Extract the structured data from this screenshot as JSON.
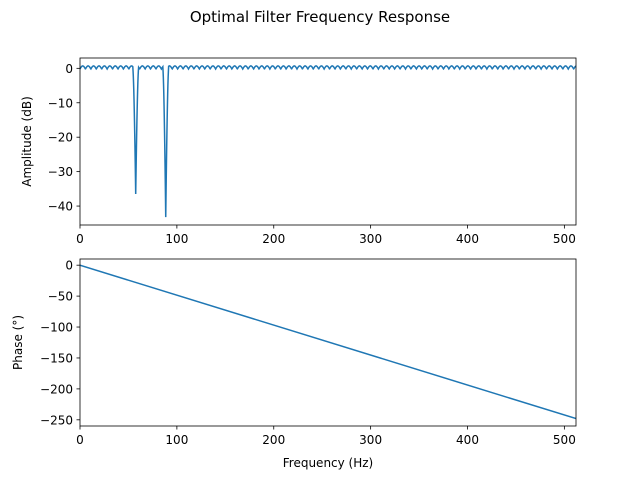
{
  "figure": {
    "title": "Optimal Filter Frequency Response"
  },
  "chart_data": [
    {
      "type": "line",
      "ylabel": "Amplitude (dB)",
      "xlabel": "",
      "xlim": [
        0,
        512
      ],
      "ylim": [
        -45.5,
        3
      ],
      "xticks": [
        0,
        100,
        200,
        300,
        400,
        500
      ],
      "yticks": [
        0,
        -10,
        -20,
        -30,
        -40
      ],
      "grid": false,
      "series_color": "#1f77b4",
      "ripple": {
        "amplitude_db": 1,
        "period_hz": 5.6
      },
      "notches": [
        {
          "center_hz": 57.5,
          "depth_db": -36.5,
          "half_width_hz": 3
        },
        {
          "center_hz": 88.5,
          "depth_db": -43.2,
          "half_width_hz": 3
        }
      ]
    },
    {
      "type": "line",
      "ylabel": "Phase (°)",
      "xlabel": "Frequency (Hz)",
      "xlim": [
        0,
        512
      ],
      "ylim": [
        -260,
        10
      ],
      "xticks": [
        0,
        100,
        200,
        300,
        400,
        500
      ],
      "yticks": [
        0,
        -50,
        -100,
        -150,
        -200,
        -250
      ],
      "grid": false,
      "series_color": "#1f77b4",
      "x": [
        0,
        512
      ],
      "y": [
        0,
        -248
      ]
    }
  ]
}
